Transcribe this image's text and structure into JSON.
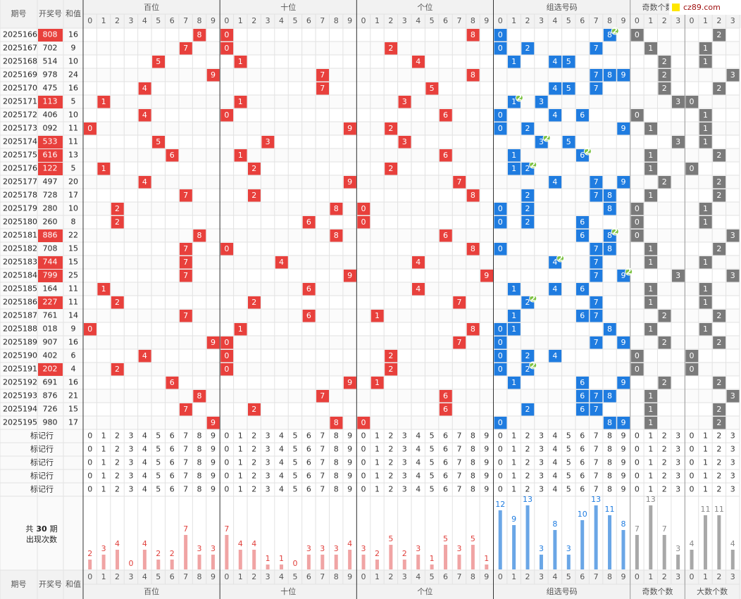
{
  "watermark": "cz89.com",
  "header": {
    "columns": [
      "期号",
      "开奖号",
      "和值"
    ]
  },
  "sections": [
    {
      "title": "百位",
      "digits": [
        0,
        1,
        2,
        3,
        4,
        5,
        6,
        7,
        8,
        9
      ]
    },
    {
      "title": "十位",
      "digits": [
        0,
        1,
        2,
        3,
        4,
        5,
        6,
        7,
        8,
        9
      ]
    },
    {
      "title": "个位",
      "digits": [
        0,
        1,
        2,
        3,
        4,
        5,
        6,
        7,
        8,
        9
      ]
    },
    {
      "title": "组选号码",
      "digits": [
        0,
        1,
        2,
        3,
        4,
        5,
        6,
        7,
        8,
        9
      ]
    },
    {
      "title": "奇数个数",
      "digits": [
        0,
        1,
        2,
        3
      ]
    },
    {
      "title": "大数个数",
      "digits": [
        0,
        1,
        2,
        3
      ]
    }
  ],
  "rows": [
    {
      "issue": "2025166",
      "number": "808",
      "sum": 16,
      "hundreds": 8,
      "tens": 0,
      "units": 8,
      "group": [
        0,
        8
      ],
      "repeat": {
        "digit": 8,
        "count": 2
      },
      "odd": 0,
      "big": 2
    },
    {
      "issue": "2025167",
      "number": "702",
      "sum": 9,
      "hundreds": 7,
      "tens": 0,
      "units": 2,
      "group": [
        0,
        2,
        7
      ],
      "repeat": null,
      "odd": 1,
      "big": 1
    },
    {
      "issue": "2025168",
      "number": "514",
      "sum": 10,
      "hundreds": 5,
      "tens": 1,
      "units": 4,
      "group": [
        1,
        4,
        5
      ],
      "repeat": null,
      "odd": 2,
      "big": 1
    },
    {
      "issue": "2025169",
      "number": "978",
      "sum": 24,
      "hundreds": 9,
      "tens": 7,
      "units": 8,
      "group": [
        7,
        8,
        9
      ],
      "repeat": null,
      "odd": 2,
      "big": 3
    },
    {
      "issue": "2025170",
      "number": "475",
      "sum": 16,
      "hundreds": 4,
      "tens": 7,
      "units": 5,
      "group": [
        4,
        5,
        7
      ],
      "repeat": null,
      "odd": 2,
      "big": 2
    },
    {
      "issue": "2025171",
      "number": "113",
      "sum": 5,
      "hundreds": 1,
      "tens": 1,
      "units": 3,
      "group": [
        1,
        3
      ],
      "repeat": {
        "digit": 1,
        "count": 2
      },
      "odd": 3,
      "big": 0
    },
    {
      "issue": "2025172",
      "number": "406",
      "sum": 10,
      "hundreds": 4,
      "tens": 0,
      "units": 6,
      "group": [
        0,
        4,
        6
      ],
      "repeat": null,
      "odd": 0,
      "big": 1
    },
    {
      "issue": "2025173",
      "number": "092",
      "sum": 11,
      "hundreds": 0,
      "tens": 9,
      "units": 2,
      "group": [
        0,
        2,
        9
      ],
      "repeat": null,
      "odd": 1,
      "big": 1
    },
    {
      "issue": "2025174",
      "number": "533",
      "sum": 11,
      "hundreds": 5,
      "tens": 3,
      "units": 3,
      "group": [
        3,
        5
      ],
      "repeat": {
        "digit": 3,
        "count": 2
      },
      "odd": 3,
      "big": 1
    },
    {
      "issue": "2025175",
      "number": "616",
      "sum": 13,
      "hundreds": 6,
      "tens": 1,
      "units": 6,
      "group": [
        1,
        6
      ],
      "repeat": {
        "digit": 6,
        "count": 2
      },
      "odd": 1,
      "big": 2
    },
    {
      "issue": "2025176",
      "number": "122",
      "sum": 5,
      "hundreds": 1,
      "tens": 2,
      "units": 2,
      "group": [
        1,
        2
      ],
      "repeat": {
        "digit": 2,
        "count": 2
      },
      "odd": 1,
      "big": 0
    },
    {
      "issue": "2025177",
      "number": "497",
      "sum": 20,
      "hundreds": 4,
      "tens": 9,
      "units": 7,
      "group": [
        4,
        7,
        9
      ],
      "repeat": null,
      "odd": 2,
      "big": 2
    },
    {
      "issue": "2025178",
      "number": "728",
      "sum": 17,
      "hundreds": 7,
      "tens": 2,
      "units": 8,
      "group": [
        2,
        7,
        8
      ],
      "repeat": null,
      "odd": 1,
      "big": 2
    },
    {
      "issue": "2025179",
      "number": "280",
      "sum": 10,
      "hundreds": 2,
      "tens": 8,
      "units": 0,
      "group": [
        0,
        2,
        8
      ],
      "repeat": null,
      "odd": 0,
      "big": 1
    },
    {
      "issue": "2025180",
      "number": "260",
      "sum": 8,
      "hundreds": 2,
      "tens": 6,
      "units": 0,
      "group": [
        0,
        2,
        6
      ],
      "repeat": null,
      "odd": 0,
      "big": 1
    },
    {
      "issue": "2025181",
      "number": "886",
      "sum": 22,
      "hundreds": 8,
      "tens": 8,
      "units": 6,
      "group": [
        6,
        8
      ],
      "repeat": {
        "digit": 8,
        "count": 2
      },
      "odd": 0,
      "big": 3
    },
    {
      "issue": "2025182",
      "number": "708",
      "sum": 15,
      "hundreds": 7,
      "tens": 0,
      "units": 8,
      "group": [
        0,
        7,
        8
      ],
      "repeat": null,
      "odd": 1,
      "big": 2
    },
    {
      "issue": "2025183",
      "number": "744",
      "sum": 15,
      "hundreds": 7,
      "tens": 4,
      "units": 4,
      "group": [
        4,
        7
      ],
      "repeat": {
        "digit": 4,
        "count": 2
      },
      "odd": 1,
      "big": 1
    },
    {
      "issue": "2025184",
      "number": "799",
      "sum": 25,
      "hundreds": 7,
      "tens": 9,
      "units": 9,
      "group": [
        7,
        9
      ],
      "repeat": {
        "digit": 9,
        "count": 2
      },
      "odd": 3,
      "big": 3
    },
    {
      "issue": "2025185",
      "number": "164",
      "sum": 11,
      "hundreds": 1,
      "tens": 6,
      "units": 4,
      "group": [
        1,
        4,
        6
      ],
      "repeat": null,
      "odd": 1,
      "big": 1
    },
    {
      "issue": "2025186",
      "number": "227",
      "sum": 11,
      "hundreds": 2,
      "tens": 2,
      "units": 7,
      "group": [
        2,
        7
      ],
      "repeat": {
        "digit": 2,
        "count": 2
      },
      "odd": 1,
      "big": 1
    },
    {
      "issue": "2025187",
      "number": "761",
      "sum": 14,
      "hundreds": 7,
      "tens": 6,
      "units": 1,
      "group": [
        1,
        6,
        7
      ],
      "repeat": null,
      "odd": 2,
      "big": 2
    },
    {
      "issue": "2025188",
      "number": "018",
      "sum": 9,
      "hundreds": 0,
      "tens": 1,
      "units": 8,
      "group": [
        0,
        1,
        8
      ],
      "repeat": null,
      "odd": 1,
      "big": 1
    },
    {
      "issue": "2025189",
      "number": "907",
      "sum": 16,
      "hundreds": 9,
      "tens": 0,
      "units": 7,
      "group": [
        0,
        7,
        9
      ],
      "repeat": null,
      "odd": 2,
      "big": 2
    },
    {
      "issue": "2025190",
      "number": "402",
      "sum": 6,
      "hundreds": 4,
      "tens": 0,
      "units": 2,
      "group": [
        0,
        2,
        4
      ],
      "repeat": null,
      "odd": 0,
      "big": 0
    },
    {
      "issue": "2025191",
      "number": "202",
      "sum": 4,
      "hundreds": 2,
      "tens": 0,
      "units": 2,
      "group": [
        0,
        2
      ],
      "repeat": {
        "digit": 2,
        "count": 2
      },
      "odd": 0,
      "big": 0
    },
    {
      "issue": "2025192",
      "number": "691",
      "sum": 16,
      "hundreds": 6,
      "tens": 9,
      "units": 1,
      "group": [
        1,
        6,
        9
      ],
      "repeat": null,
      "odd": 2,
      "big": 2
    },
    {
      "issue": "2025193",
      "number": "876",
      "sum": 21,
      "hundreds": 8,
      "tens": 7,
      "units": 6,
      "group": [
        6,
        7,
        8
      ],
      "repeat": null,
      "odd": 1,
      "big": 3
    },
    {
      "issue": "2025194",
      "number": "726",
      "sum": 15,
      "hundreds": 7,
      "tens": 2,
      "units": 6,
      "group": [
        2,
        6,
        7
      ],
      "repeat": null,
      "odd": 1,
      "big": 2
    },
    {
      "issue": "2025195",
      "number": "980",
      "sum": 17,
      "hundreds": 9,
      "tens": 8,
      "units": 0,
      "group": [
        0,
        8,
        9
      ],
      "repeat": null,
      "odd": 1,
      "big": 2
    }
  ],
  "marker_label": "标记行",
  "marker_rows": 5,
  "stats": {
    "total_prefix": "共",
    "total": 30,
    "total_suffix": "期",
    "label": "出现次数",
    "counts": [
      [
        2,
        3,
        4,
        0,
        4,
        2,
        2,
        7,
        3,
        3
      ],
      [
        7,
        4,
        4,
        1,
        1,
        0,
        3,
        3,
        3,
        4
      ],
      [
        3,
        2,
        5,
        2,
        3,
        1,
        5,
        3,
        5,
        1
      ],
      [
        12,
        9,
        13,
        3,
        8,
        3,
        10,
        13,
        11,
        8
      ],
      [
        7,
        13,
        7,
        3
      ],
      [
        4,
        11,
        11,
        4
      ]
    ]
  }
}
